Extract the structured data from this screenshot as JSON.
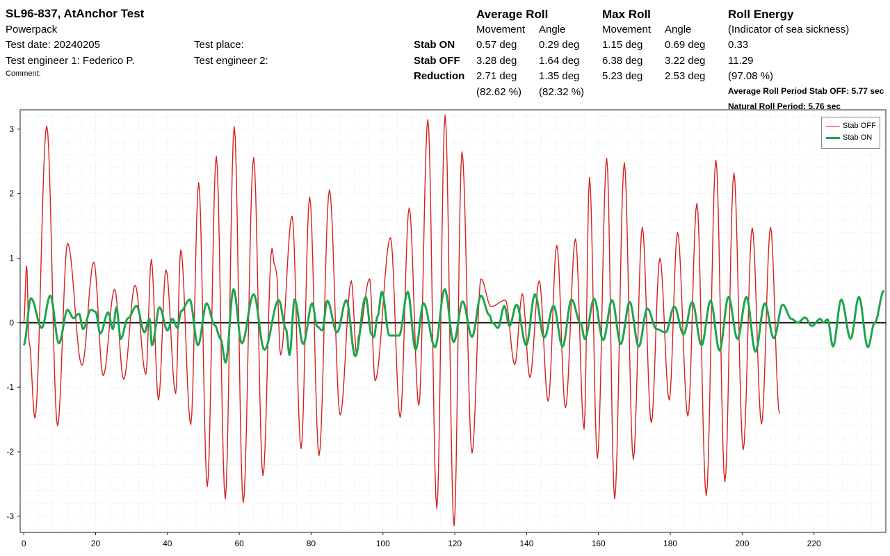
{
  "header": {
    "title": "SL96-837, AtAnchor Test",
    "product": "Powerpack",
    "test_date": "Test date: 20240205",
    "test_engineer1": "Test engineer 1: Federico P.",
    "comment": "Comment:",
    "test_place": "Test place:",
    "test_engineer2": "Test engineer 2:"
  },
  "stats": {
    "avg_roll_title": "Average Roll",
    "max_roll_title": "Max Roll",
    "roll_energy_title": "Roll Energy",
    "movement": "Movement",
    "angle": "Angle",
    "sea_sickness": "(Indicator of sea sickness)",
    "rows": [
      {
        "label": "Stab ON",
        "avg_move": "0.57 deg",
        "avg_angle": "0.29 deg",
        "max_move": "1.15 deg",
        "max_angle": "0.69 deg",
        "energy": "0.33"
      },
      {
        "label": "Stab OFF",
        "avg_move": "3.28 deg",
        "avg_angle": "1.64 deg",
        "max_move": "6.38 deg",
        "max_angle": "3.22 deg",
        "energy": "11.29"
      },
      {
        "label": "Reduction",
        "avg_move": "2.71 deg",
        "avg_angle": "1.35 deg",
        "max_move": "5.23 deg",
        "max_angle": "2.53 deg",
        "energy": "(97.08 %)"
      }
    ],
    "reduction_pct_move": "(82.62 %)",
    "reduction_pct_angle": "(82.32 %)",
    "avg_period": "Average Roll Period Stab OFF: 5.77 sec",
    "natural_period": "Natural Roll Period: 5.76 sec"
  },
  "chart_data": {
    "type": "line",
    "xlim": [
      -1,
      240
    ],
    "ylim": [
      -3.25,
      3.3
    ],
    "x_ticks": [
      0,
      20,
      40,
      60,
      80,
      100,
      120,
      140,
      160,
      180,
      200,
      220
    ],
    "y_ticks": [
      -3,
      -2,
      -1,
      0,
      1,
      2,
      3
    ],
    "legend": [
      "Stab OFF",
      "Stab ON"
    ],
    "colors": {
      "off": "#d42020",
      "on": "#1fa44d"
    },
    "series": [
      {
        "name": "Stab OFF",
        "extrema": [
          [
            0,
            0.0
          ],
          [
            0.8,
            0.88
          ],
          [
            1.5,
            -0.3
          ],
          [
            3.1,
            -1.48
          ],
          [
            6.4,
            3.05
          ],
          [
            9.4,
            -1.6
          ],
          [
            12.2,
            1.23
          ],
          [
            16.2,
            -0.66
          ],
          [
            19.5,
            0.94
          ],
          [
            22.1,
            -0.82
          ],
          [
            25.3,
            0.52
          ],
          [
            27.8,
            -0.88
          ],
          [
            31,
            0.58
          ],
          [
            34,
            -0.8
          ],
          [
            35.5,
            0.98
          ],
          [
            37.5,
            -1.2
          ],
          [
            39.6,
            0.82
          ],
          [
            42.3,
            -1.1
          ],
          [
            43.7,
            1.13
          ],
          [
            46.5,
            -1.58
          ],
          [
            48.7,
            2.17
          ],
          [
            51.1,
            -2.54
          ],
          [
            53.6,
            2.58
          ],
          [
            56.1,
            -2.73
          ],
          [
            58.6,
            3.04
          ],
          [
            61.1,
            -2.79
          ],
          [
            64,
            2.56
          ],
          [
            66.6,
            -2.37
          ],
          [
            69.1,
            1.15
          ],
          [
            69.8,
            0.9
          ],
          [
            70.3,
            0.8
          ],
          [
            71.5,
            -0.5
          ],
          [
            74.7,
            1.65
          ],
          [
            77.2,
            -1.95
          ],
          [
            79.6,
            1.95
          ],
          [
            82.2,
            -2.06
          ],
          [
            85.1,
            2.06
          ],
          [
            88.1,
            -1.43
          ],
          [
            91.2,
            0.65
          ],
          [
            92.7,
            -0.5
          ],
          [
            93.2,
            -0.2
          ],
          [
            96.3,
            0.68
          ],
          [
            97.8,
            -0.9
          ],
          [
            102.1,
            1.32
          ],
          [
            104.8,
            -1.47
          ],
          [
            107.3,
            1.78
          ],
          [
            110,
            -1.28
          ],
          [
            112.5,
            3.15
          ],
          [
            115,
            -2.88
          ],
          [
            117.3,
            3.22
          ],
          [
            119.8,
            -3.15
          ],
          [
            122,
            2.65
          ],
          [
            124.8,
            -2.02
          ],
          [
            127.3,
            0.68
          ],
          [
            130.1,
            0.25
          ],
          [
            134.1,
            0.35
          ],
          [
            136.7,
            -0.65
          ],
          [
            138.8,
            0.45
          ],
          [
            140.9,
            -0.85
          ],
          [
            143.5,
            0.65
          ],
          [
            146,
            -1.22
          ],
          [
            148.4,
            1.2
          ],
          [
            150.8,
            -1.32
          ],
          [
            153.6,
            1.3
          ],
          [
            156,
            -1.65
          ],
          [
            157.5,
            2.25
          ],
          [
            159.7,
            -2.1
          ],
          [
            162.3,
            2.55
          ],
          [
            164.5,
            -2.73
          ],
          [
            167.2,
            2.48
          ],
          [
            169.7,
            -2.12
          ],
          [
            172.2,
            1.48
          ],
          [
            174.7,
            -1.55
          ],
          [
            177.1,
            1.0
          ],
          [
            179.7,
            -1.2
          ],
          [
            182,
            1.4
          ],
          [
            184.9,
            -1.45
          ],
          [
            187.4,
            1.85
          ],
          [
            190,
            -2.68
          ],
          [
            192.7,
            2.52
          ],
          [
            195.2,
            -2.47
          ],
          [
            197.7,
            2.32
          ],
          [
            200.3,
            -1.97
          ],
          [
            202.8,
            1.47
          ],
          [
            205.4,
            -1.57
          ],
          [
            207.9,
            1.48
          ],
          [
            210.4,
            -1.41
          ]
        ]
      },
      {
        "name": "Stab ON",
        "extrema": [
          [
            0,
            -0.35
          ],
          [
            2,
            0.38
          ],
          [
            5,
            -0.08
          ],
          [
            7.4,
            0.42
          ],
          [
            9.8,
            -0.32
          ],
          [
            12.2,
            0.2
          ],
          [
            13.8,
            0.07
          ],
          [
            15.4,
            0.14
          ],
          [
            16.5,
            -0.1
          ],
          [
            18.7,
            0.2
          ],
          [
            20,
            0.17
          ],
          [
            21.3,
            -0.17
          ],
          [
            23.5,
            0.16
          ],
          [
            24.8,
            -0.1
          ],
          [
            25.8,
            0.24
          ],
          [
            27,
            -0.25
          ],
          [
            29,
            0.07
          ],
          [
            31.4,
            0.26
          ],
          [
            33.6,
            -0.15
          ],
          [
            35,
            0.06
          ],
          [
            35.7,
            -0.35
          ],
          [
            37.8,
            0.24
          ],
          [
            40,
            -0.12
          ],
          [
            41.4,
            0.06
          ],
          [
            42.8,
            -0.08
          ],
          [
            43.8,
            0.18
          ],
          [
            46.2,
            0.36
          ],
          [
            48.5,
            -0.35
          ],
          [
            50.9,
            0.3
          ],
          [
            53.2,
            -0.04
          ],
          [
            54.8,
            -0.25
          ],
          [
            56.2,
            -0.62
          ],
          [
            58.4,
            0.52
          ],
          [
            60.7,
            -0.32
          ],
          [
            64,
            0.44
          ],
          [
            67,
            -0.42
          ],
          [
            71,
            0.35
          ],
          [
            73,
            -0.1
          ],
          [
            74,
            -0.5
          ],
          [
            75.4,
            0.36
          ],
          [
            77.8,
            -0.33
          ],
          [
            80.3,
            0.3
          ],
          [
            81.7,
            -0.06
          ],
          [
            83.1,
            -0.12
          ],
          [
            84.5,
            0.34
          ],
          [
            87.2,
            -0.15
          ],
          [
            89.8,
            0.35
          ],
          [
            92.3,
            -0.52
          ],
          [
            95.2,
            0.4
          ],
          [
            96.8,
            -0.18
          ],
          [
            97.5,
            -0.22
          ],
          [
            98.5,
            0.1
          ],
          [
            99.7,
            0.48
          ],
          [
            101.8,
            -0.2
          ],
          [
            104.5,
            -0.2
          ],
          [
            106.9,
            0.48
          ],
          [
            109.1,
            -0.42
          ],
          [
            111.3,
            0.3
          ],
          [
            114.5,
            -0.38
          ],
          [
            117.2,
            0.52
          ],
          [
            119.7,
            -0.3
          ],
          [
            122.2,
            0.33
          ],
          [
            124.8,
            -0.22
          ],
          [
            127.3,
            0.42
          ],
          [
            129.6,
            0.12
          ],
          [
            130.5,
            0.0
          ],
          [
            132,
            -0.08
          ],
          [
            133.8,
            0.26
          ],
          [
            135.2,
            -0.05
          ],
          [
            137.2,
            0.28
          ],
          [
            139.9,
            -0.35
          ],
          [
            142.3,
            0.44
          ],
          [
            144.9,
            -0.23
          ],
          [
            147.5,
            0.26
          ],
          [
            150,
            -0.37
          ],
          [
            152.5,
            0.36
          ],
          [
            155,
            0.0
          ],
          [
            156.2,
            -0.25
          ],
          [
            158.8,
            0.37
          ],
          [
            161.3,
            -0.27
          ],
          [
            163.8,
            0.35
          ],
          [
            166.2,
            -0.33
          ],
          [
            168.7,
            0.32
          ],
          [
            171.2,
            -0.37
          ],
          [
            173.6,
            0.22
          ],
          [
            176.2,
            -0.1
          ],
          [
            178.7,
            -0.15
          ],
          [
            181.1,
            0.25
          ],
          [
            183.7,
            -0.18
          ],
          [
            186.1,
            0.32
          ],
          [
            188.7,
            -0.35
          ],
          [
            191.2,
            0.34
          ],
          [
            193.7,
            -0.43
          ],
          [
            196.2,
            0.4
          ],
          [
            198.7,
            -0.25
          ],
          [
            201.2,
            0.4
          ],
          [
            203.7,
            -0.45
          ],
          [
            206.3,
            0.3
          ],
          [
            208.8,
            -0.24
          ],
          [
            211.3,
            0.28
          ],
          [
            213.7,
            0.06
          ],
          [
            215.5,
            0.0
          ],
          [
            217.5,
            0.08
          ],
          [
            219.4,
            -0.05
          ],
          [
            221.8,
            0.06
          ],
          [
            222.5,
            0.0
          ],
          [
            223.8,
            0.05
          ],
          [
            225.3,
            -0.37
          ],
          [
            227.6,
            0.36
          ],
          [
            230.2,
            -0.25
          ],
          [
            232.5,
            0.4
          ],
          [
            235,
            -0.38
          ],
          [
            236.9,
            0.0
          ],
          [
            239.5,
            0.5
          ]
        ]
      }
    ]
  }
}
